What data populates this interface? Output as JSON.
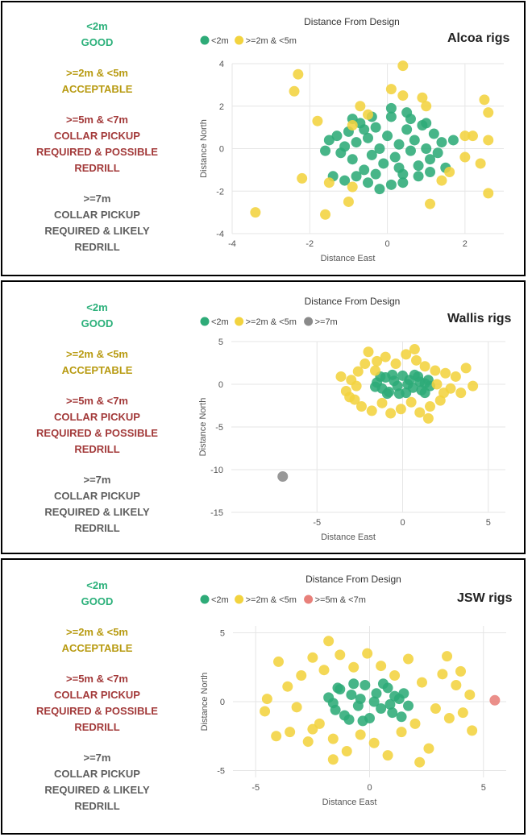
{
  "panels": [
    {
      "rig": "Alcoa rigs",
      "legend_text": {
        "good": [
          "<2m",
          "GOOD"
        ],
        "acceptable": [
          ">=2m & <5m",
          "ACCEPTABLE"
        ],
        "collar_possible": [
          ">=5m & <7m",
          "COLLAR PICKUP",
          "REQUIRED & POSSIBLE",
          "REDRILL"
        ],
        "collar_likely": [
          ">=7m",
          "COLLAR PICKUP",
          "REQUIRED & LIKELY",
          "REDRILL"
        ]
      }
    },
    {
      "rig": "Wallis rigs",
      "legend_text": {
        "good": [
          "<2m",
          "GOOD"
        ],
        "acceptable": [
          ">=2m & <5m",
          "ACCEPTABLE"
        ],
        "collar_possible": [
          ">=5m & <7m",
          "COLLAR PICKUP",
          "REQUIRED & POSSIBLE",
          "REDRILL"
        ],
        "collar_likely": [
          ">=7m",
          "COLLAR PICKUP",
          "REQUIRED & LIKELY",
          "REDRILL"
        ]
      }
    },
    {
      "rig": "JSW rigs",
      "legend_text": {
        "good": [
          "<2m",
          "GOOD"
        ],
        "acceptable": [
          ">=2m & <5m",
          "ACCEPTABLE"
        ],
        "collar_possible": [
          ">=5m & <7m",
          "COLLAR PICKUP",
          "REQUIRED & POSSIBLE",
          "REDRILL"
        ],
        "collar_likely": [
          ">=7m",
          "COLLAR PICKUP",
          "REQUIRED & LIKELY",
          "REDRILL"
        ]
      }
    }
  ],
  "colors": {
    "good": "#2eab78",
    "acceptable": "#f2d33f",
    "collar_possible": "#e8807a",
    "collar_likely": "#8a8a8a",
    "grid": "#e6e6e6"
  },
  "chart_data": [
    {
      "type": "scatter",
      "title": "Distance From Design",
      "xlabel": "Distance East",
      "ylabel": "Distance North",
      "xlim": [
        -4,
        3
      ],
      "ylim": [
        -4,
        4
      ],
      "xticks": [
        "-4",
        "-2",
        "0",
        "2"
      ],
      "yticks": [
        "4",
        "2",
        "0",
        "-2",
        "-4"
      ],
      "series": [
        {
          "name": "<2m",
          "key": "good",
          "points": [
            [
              -1.5,
              0.4
            ],
            [
              -1.3,
              0.6
            ],
            [
              -1.2,
              -0.2
            ],
            [
              -1.1,
              0.1
            ],
            [
              -1.0,
              0.8
            ],
            [
              -0.9,
              -0.5
            ],
            [
              -0.8,
              0.3
            ],
            [
              -0.7,
              1.2
            ],
            [
              -0.6,
              -1.0
            ],
            [
              -0.5,
              0.5
            ],
            [
              -0.4,
              -0.3
            ],
            [
              -0.3,
              1.0
            ],
            [
              -0.2,
              0.0
            ],
            [
              -0.1,
              -0.7
            ],
            [
              0.0,
              0.6
            ],
            [
              0.1,
              1.5
            ],
            [
              0.2,
              -0.4
            ],
            [
              0.3,
              0.2
            ],
            [
              0.4,
              -1.2
            ],
            [
              0.5,
              0.9
            ],
            [
              0.6,
              -0.1
            ],
            [
              0.7,
              0.4
            ],
            [
              0.8,
              -0.8
            ],
            [
              0.9,
              1.1
            ],
            [
              1.0,
              0.0
            ],
            [
              1.1,
              -0.5
            ],
            [
              1.2,
              0.7
            ],
            [
              1.3,
              -0.2
            ],
            [
              1.4,
              0.3
            ],
            [
              1.5,
              -0.9
            ],
            [
              -1.4,
              -1.3
            ],
            [
              -1.1,
              -1.5
            ],
            [
              -0.8,
              -1.3
            ],
            [
              -0.5,
              -1.6
            ],
            [
              -0.2,
              -1.9
            ],
            [
              0.1,
              -1.7
            ],
            [
              0.4,
              -1.6
            ],
            [
              0.8,
              -1.3
            ],
            [
              1.1,
              -1.1
            ],
            [
              -0.9,
              1.4
            ],
            [
              -0.4,
              1.5
            ],
            [
              0.1,
              1.9
            ],
            [
              0.6,
              1.4
            ],
            [
              1.0,
              1.2
            ],
            [
              -1.6,
              -0.1
            ],
            [
              1.7,
              0.4
            ],
            [
              -0.3,
              -1.2
            ],
            [
              0.3,
              -0.9
            ],
            [
              -0.6,
              0.9
            ],
            [
              0.5,
              1.7
            ]
          ]
        },
        {
          "name": ">=2m & <5m",
          "key": "acceptable",
          "points": [
            [
              -2.3,
              3.5
            ],
            [
              -2.4,
              2.7
            ],
            [
              -1.8,
              1.3
            ],
            [
              -0.7,
              2.0
            ],
            [
              -0.5,
              1.6
            ],
            [
              0.4,
              3.9
            ],
            [
              0.1,
              2.8
            ],
            [
              0.4,
              2.5
            ],
            [
              0.9,
              2.4
            ],
            [
              1.0,
              2.0
            ],
            [
              2.5,
              2.3
            ],
            [
              2.6,
              1.7
            ],
            [
              2.2,
              0.6
            ],
            [
              2.6,
              0.4
            ],
            [
              2.0,
              0.6
            ],
            [
              2.0,
              -0.4
            ],
            [
              2.4,
              -0.7
            ],
            [
              1.6,
              -1.1
            ],
            [
              1.4,
              -1.5
            ],
            [
              2.6,
              -2.1
            ],
            [
              1.1,
              -2.6
            ],
            [
              -0.9,
              -1.8
            ],
            [
              -1.0,
              -2.5
            ],
            [
              -1.6,
              -3.1
            ],
            [
              -2.2,
              -1.4
            ],
            [
              -3.4,
              -3.0
            ],
            [
              -1.5,
              -1.6
            ],
            [
              -0.9,
              1.1
            ]
          ]
        }
      ]
    },
    {
      "type": "scatter",
      "title": "Distance From Design",
      "xlabel": "Distance East",
      "ylabel": "Distance North",
      "xlim": [
        -10,
        6
      ],
      "ylim": [
        -15,
        5
      ],
      "xticks": [
        "-5",
        "0",
        "5"
      ],
      "yticks": [
        "5",
        "0",
        "-5",
        "-10",
        "-15"
      ],
      "series": [
        {
          "name": "<2m",
          "key": "good",
          "points": [
            [
              -1.5,
              0.2
            ],
            [
              -1.2,
              -0.5
            ],
            [
              -1.0,
              0.8
            ],
            [
              -0.8,
              -0.9
            ],
            [
              -0.5,
              0.4
            ],
            [
              -0.3,
              -0.2
            ],
            [
              0.0,
              1.0
            ],
            [
              0.2,
              -1.0
            ],
            [
              0.4,
              0.5
            ],
            [
              0.6,
              -0.4
            ],
            [
              0.9,
              0.9
            ],
            [
              1.1,
              -0.7
            ],
            [
              1.3,
              0.1
            ],
            [
              1.5,
              0.5
            ],
            [
              -1.6,
              -0.3
            ],
            [
              1.6,
              -0.2
            ],
            [
              -0.6,
              1.1
            ],
            [
              0.7,
              1.1
            ],
            [
              -0.9,
              -1.1
            ],
            [
              0.3,
              0.0
            ],
            [
              -0.2,
              -1.1
            ],
            [
              1.0,
              0.3
            ],
            [
              -1.3,
              0.9
            ],
            [
              1.3,
              -1.0
            ]
          ]
        },
        {
          "name": ">=2m & <5m",
          "key": "acceptable",
          "points": [
            [
              -3.6,
              0.9
            ],
            [
              -3.3,
              -0.8
            ],
            [
              -3.0,
              0.5
            ],
            [
              -2.8,
              -1.8
            ],
            [
              -2.6,
              1.5
            ],
            [
              -2.4,
              -2.6
            ],
            [
              -2.2,
              2.4
            ],
            [
              -2.0,
              3.8
            ],
            [
              -1.8,
              -3.1
            ],
            [
              -1.5,
              2.7
            ],
            [
              -1.2,
              -2.2
            ],
            [
              -1.0,
              3.2
            ],
            [
              -0.7,
              -3.4
            ],
            [
              -0.4,
              2.4
            ],
            [
              -0.1,
              -2.9
            ],
            [
              0.2,
              3.5
            ],
            [
              0.5,
              -2.1
            ],
            [
              0.8,
              2.8
            ],
            [
              1.0,
              -3.3
            ],
            [
              1.3,
              2.1
            ],
            [
              1.6,
              -2.6
            ],
            [
              1.9,
              1.6
            ],
            [
              2.2,
              -1.9
            ],
            [
              2.5,
              1.3
            ],
            [
              2.8,
              -0.5
            ],
            [
              3.1,
              0.9
            ],
            [
              3.4,
              -1.0
            ],
            [
              3.7,
              1.9
            ],
            [
              4.1,
              -0.2
            ],
            [
              2.4,
              -1.0
            ],
            [
              -2.7,
              -0.2
            ],
            [
              -3.1,
              -1.5
            ],
            [
              0.7,
              4.1
            ],
            [
              1.5,
              -4.0
            ],
            [
              -1.6,
              1.6
            ],
            [
              2.0,
              0.0
            ]
          ]
        },
        {
          "name": ">=7m",
          "key": "collar_likely",
          "points": [
            [
              -7.0,
              -10.8
            ]
          ]
        }
      ]
    },
    {
      "type": "scatter",
      "title": "Distance From Design",
      "xlabel": "Distance East",
      "ylabel": "Distance North",
      "xlim": [
        -6,
        6
      ],
      "ylim": [
        -5.5,
        5.5
      ],
      "xticks": [
        "-5",
        "0",
        "5"
      ],
      "yticks": [
        "5",
        "0",
        "-5"
      ],
      "series": [
        {
          "name": "<2m",
          "key": "good",
          "points": [
            [
              -1.8,
              0.3
            ],
            [
              -1.5,
              -0.6
            ],
            [
              -1.3,
              0.9
            ],
            [
              -1.1,
              -1.0
            ],
            [
              -0.8,
              0.5
            ],
            [
              -0.5,
              -0.3
            ],
            [
              -0.2,
              1.2
            ],
            [
              0.0,
              -1.2
            ],
            [
              0.3,
              0.6
            ],
            [
              0.5,
              -0.5
            ],
            [
              0.8,
              1.0
            ],
            [
              1.0,
              -0.8
            ],
            [
              1.3,
              0.2
            ],
            [
              1.5,
              0.6
            ],
            [
              1.7,
              -0.3
            ],
            [
              -1.6,
              -0.1
            ],
            [
              -0.7,
              1.3
            ],
            [
              0.6,
              1.3
            ],
            [
              -0.9,
              -1.3
            ],
            [
              0.2,
              0.0
            ],
            [
              -0.3,
              -1.4
            ],
            [
              1.1,
              0.4
            ],
            [
              -1.4,
              1.0
            ],
            [
              1.4,
              -1.1
            ],
            [
              -0.4,
              0.2
            ],
            [
              0.9,
              -0.2
            ]
          ]
        },
        {
          "name": ">=2m & <5m",
          "key": "acceptable",
          "points": [
            [
              -4.5,
              0.2
            ],
            [
              -4.6,
              -0.7
            ],
            [
              -4.0,
              2.9
            ],
            [
              -3.6,
              1.1
            ],
            [
              -3.5,
              -2.2
            ],
            [
              -3.2,
              -0.4
            ],
            [
              -3.0,
              1.9
            ],
            [
              -2.7,
              -2.9
            ],
            [
              -2.5,
              3.2
            ],
            [
              -2.2,
              -1.6
            ],
            [
              -2.0,
              2.3
            ],
            [
              -1.8,
              4.4
            ],
            [
              -1.6,
              -2.7
            ],
            [
              -1.3,
              3.4
            ],
            [
              -1.0,
              -3.6
            ],
            [
              -0.7,
              2.5
            ],
            [
              -0.4,
              -2.4
            ],
            [
              -0.1,
              3.5
            ],
            [
              0.2,
              -3.0
            ],
            [
              0.5,
              2.6
            ],
            [
              0.8,
              -3.9
            ],
            [
              1.1,
              1.9
            ],
            [
              1.4,
              -2.2
            ],
            [
              1.7,
              3.1
            ],
            [
              2.0,
              -1.6
            ],
            [
              2.3,
              1.4
            ],
            [
              2.6,
              -3.4
            ],
            [
              2.9,
              -0.5
            ],
            [
              3.2,
              2.0
            ],
            [
              3.5,
              -1.2
            ],
            [
              3.8,
              1.2
            ],
            [
              4.1,
              -0.8
            ],
            [
              4.4,
              0.5
            ],
            [
              4.5,
              -2.1
            ],
            [
              3.4,
              3.3
            ],
            [
              2.2,
              -4.4
            ],
            [
              -1.6,
              -4.2
            ],
            [
              -2.5,
              -2.0
            ],
            [
              -4.1,
              -2.5
            ],
            [
              4.0,
              2.2
            ]
          ]
        },
        {
          "name": ">=5m & <7m",
          "key": "collar_possible",
          "points": [
            [
              5.5,
              0.1
            ]
          ]
        }
      ]
    }
  ],
  "chart_layouts": [
    {
      "svg_h": 342,
      "pl": 285,
      "pr": 622,
      "pt": 76,
      "pb": 287
    },
    {
      "svg_h": 340,
      "pl": 284,
      "pr": 624,
      "pt": 74,
      "pb": 286
    },
    {
      "svg_h": 343,
      "pl": 286,
      "pr": 625,
      "pt": 82,
      "pb": 270
    }
  ]
}
